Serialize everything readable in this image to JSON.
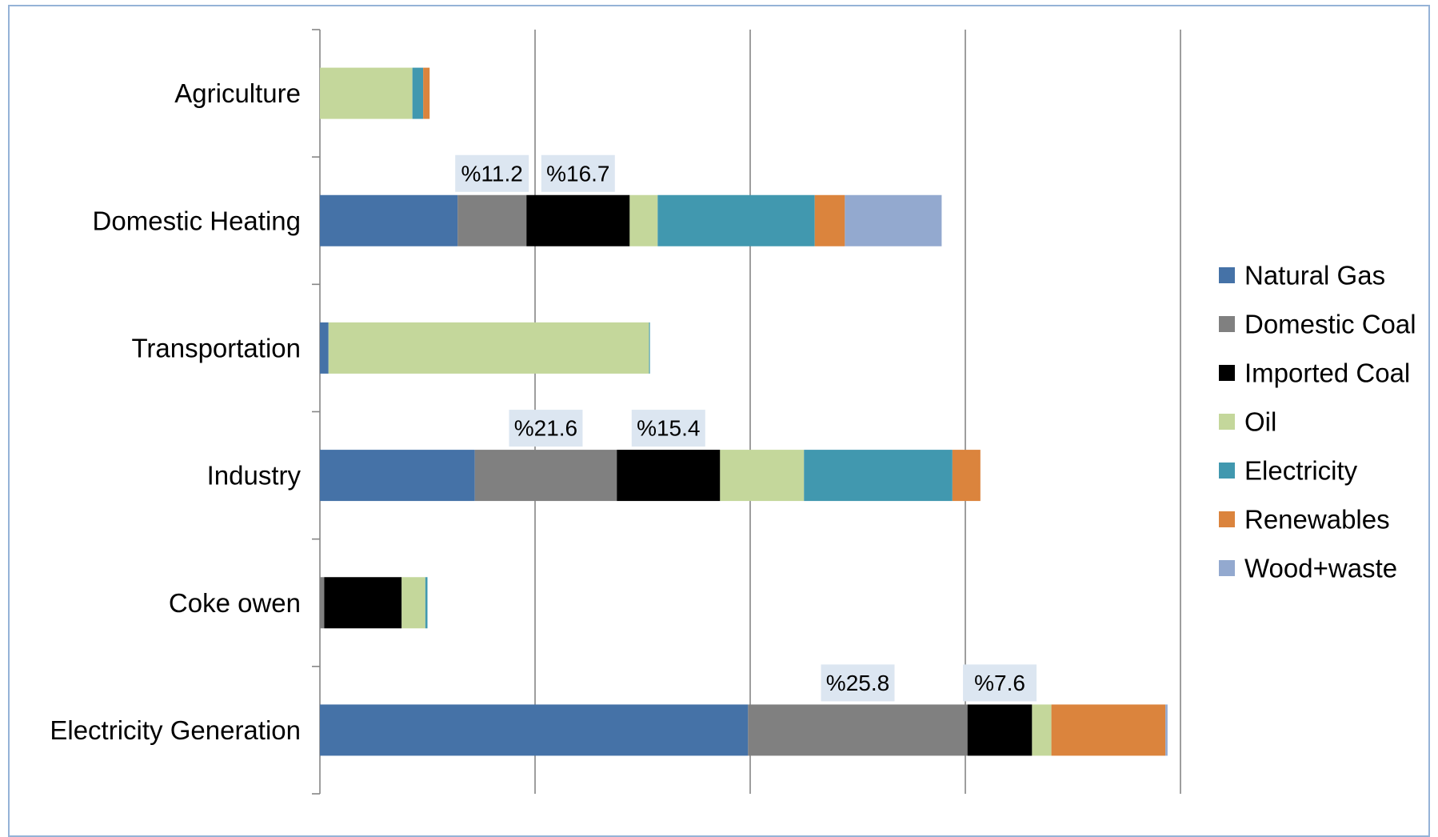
{
  "chart_data": {
    "type": "bar",
    "orientation": "horizontal",
    "stacked": true,
    "title": "",
    "xlabel": "",
    "ylabel": "",
    "xlim": [
      0,
      20
    ],
    "x_tick_step": 5,
    "x_tick_labels_shown": false,
    "grid": "vertical",
    "legend_position": "right",
    "categories": [
      "Agriculture",
      "Domestic Heating",
      "Transportation",
      "Industry",
      "Coke owen",
      "Electricity Generation"
    ],
    "series": [
      {
        "name": "Natural Gas",
        "color": "#4572a7",
        "values": [
          0,
          3.2,
          0.2,
          3.6,
          0,
          9.95
        ]
      },
      {
        "name": "Domestic Coal",
        "color": "#808080",
        "values": [
          0,
          1.6,
          0,
          3.3,
          0.1,
          5.1
        ]
      },
      {
        "name": "Imported Coal",
        "color": "#000000",
        "values": [
          0,
          2.4,
          0,
          2.4,
          1.8,
          1.5
        ]
      },
      {
        "name": "Oil",
        "color": "#c4d79b",
        "values": [
          2.15,
          0.65,
          7.45,
          1.95,
          0.55,
          0.45
        ]
      },
      {
        "name": "Electricity",
        "color": "#4198af",
        "values": [
          0.25,
          3.65,
          0.02,
          3.45,
          0.05,
          0
        ]
      },
      {
        "name": "Renewables",
        "color": "#db843d",
        "values": [
          0.15,
          0.7,
          0,
          0.65,
          0,
          2.65
        ]
      },
      {
        "name": "Wood+waste",
        "color": "#93a9cf",
        "values": [
          0,
          2.25,
          0,
          0,
          0,
          0.05
        ]
      }
    ],
    "annotations": [
      {
        "category": "Domestic Heating",
        "series": "Domestic Coal",
        "text": "%11.2"
      },
      {
        "category": "Domestic Heating",
        "series": "Imported Coal",
        "text": "%16.7"
      },
      {
        "category": "Industry",
        "series": "Domestic Coal",
        "text": "%21.6"
      },
      {
        "category": "Industry",
        "series": "Imported Coal",
        "text": "%15.4"
      },
      {
        "category": "Electricity Generation",
        "series": "Domestic Coal",
        "text": "%25.8"
      },
      {
        "category": "Electricity Generation",
        "series": "Imported Coal",
        "text": "%7.6"
      }
    ],
    "annotation_bg": "#dce6f1",
    "gridline_color": "#868686"
  }
}
